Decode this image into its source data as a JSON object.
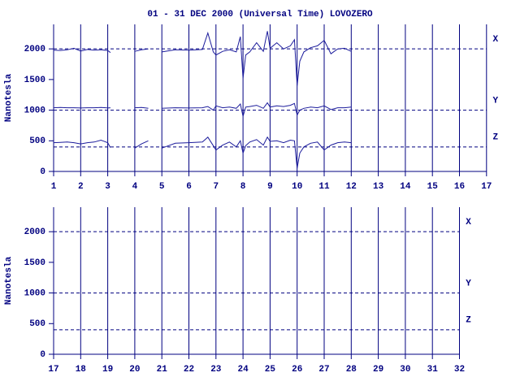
{
  "chart_data": [
    {
      "type": "line",
      "title": "01 - 31 DEC 2000 (Universal Time) LOVOZERO",
      "y_label": "Nanotesla",
      "xlim": [
        1,
        17
      ],
      "xticks": [
        1,
        2,
        3,
        4,
        5,
        6,
        7,
        8,
        9,
        10,
        11,
        12,
        13,
        14,
        15,
        16,
        17
      ],
      "ylim": [
        0,
        2400
      ],
      "yticks": [
        0,
        500,
        1000,
        1500,
        2000
      ],
      "grid": true,
      "reference_lines": [
        {
          "value": 2000,
          "label": "X"
        },
        {
          "value": 1000,
          "label": "Y"
        },
        {
          "value": 400,
          "label": "Z"
        }
      ],
      "x": [
        1,
        1.25,
        1.5,
        1.75,
        2,
        2.25,
        2.5,
        2.75,
        3,
        3.1,
        3.5,
        4,
        4.25,
        4.5,
        4.6,
        5,
        5.5,
        6,
        6.5,
        6.7,
        6.9,
        7,
        7.25,
        7.5,
        7.75,
        7.9,
        8,
        8.1,
        8.25,
        8.5,
        8.75,
        8.9,
        9,
        9.25,
        9.5,
        9.75,
        9.9,
        10,
        10.1,
        10.25,
        10.5,
        10.75,
        11,
        11.25,
        11.5,
        11.75,
        12
      ],
      "series": [
        {
          "name": "X",
          "color": "#1c1c9c",
          "values": [
            1980,
            1975,
            1985,
            2010,
            1965,
            1990,
            1980,
            1985,
            1975,
            1940,
            null,
            1960,
            1985,
            2000,
            null,
            1950,
            1985,
            1980,
            1990,
            2260,
            1950,
            1900,
            1960,
            1985,
            1950,
            2200,
            1520,
            1900,
            1950,
            2100,
            1960,
            2290,
            2010,
            2100,
            2000,
            2050,
            2150,
            1400,
            1800,
            1950,
            2020,
            2050,
            2140,
            1920,
            2000,
            2010,
            1960
          ]
        },
        {
          "name": "Y",
          "color": "#1c1c9c",
          "values": [
            1040,
            1045,
            1040,
            1040,
            1035,
            1040,
            1040,
            1045,
            1035,
            1040,
            null,
            1040,
            1045,
            1030,
            null,
            1030,
            1040,
            1035,
            1040,
            1060,
            1000,
            1070,
            1040,
            1050,
            1030,
            1100,
            900,
            1050,
            1060,
            1080,
            1030,
            1120,
            1050,
            1070,
            1060,
            1080,
            1110,
            920,
            1000,
            1030,
            1050,
            1040,
            1070,
            1010,
            1040,
            1040,
            1050
          ]
        },
        {
          "name": "Z",
          "color": "#1c1c9c",
          "values": [
            470,
            475,
            480,
            470,
            450,
            470,
            480,
            510,
            470,
            390,
            null,
            380,
            450,
            500,
            null,
            380,
            460,
            470,
            480,
            560,
            420,
            350,
            430,
            480,
            400,
            500,
            300,
            420,
            480,
            520,
            430,
            560,
            490,
            500,
            470,
            510,
            500,
            50,
            300,
            400,
            460,
            480,
            350,
            430,
            470,
            480,
            470
          ]
        }
      ]
    },
    {
      "type": "line",
      "y_label": "Nanotesla",
      "xlim": [
        17,
        32
      ],
      "xticks": [
        17,
        18,
        19,
        20,
        21,
        22,
        23,
        24,
        25,
        26,
        27,
        28,
        29,
        30,
        31,
        32
      ],
      "ylim": [
        0,
        2400
      ],
      "yticks": [
        0,
        500,
        1000,
        1500,
        2000
      ],
      "grid": true,
      "reference_lines": [
        {
          "value": 2000,
          "label": "X"
        },
        {
          "value": 1000,
          "label": "Y"
        },
        {
          "value": 400,
          "label": "Z"
        }
      ],
      "x": [],
      "series": []
    }
  ]
}
